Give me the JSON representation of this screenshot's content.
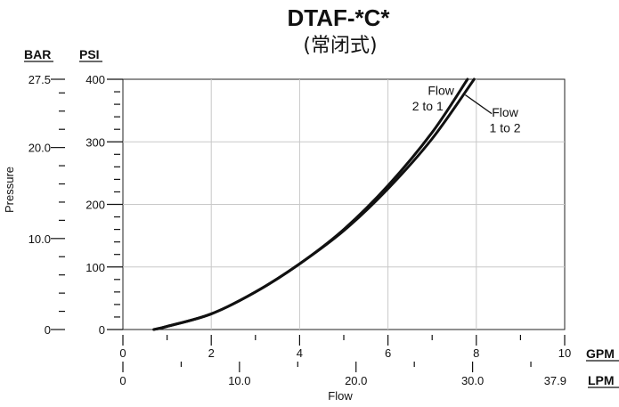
{
  "chart_data": {
    "type": "line",
    "title": "DTAF-*C*",
    "subtitle": "(常闭式)",
    "xlabel": "Flow",
    "ylabel": "Pressure",
    "grid": true,
    "x_axis_gpm": {
      "unit": "GPM",
      "range": [
        0,
        10
      ],
      "ticks": [
        "0",
        "2",
        "4",
        "6",
        "8",
        "10"
      ],
      "tick_values": [
        0,
        2,
        4,
        6,
        8,
        10
      ]
    },
    "x_axis_lpm": {
      "unit": "LPM",
      "ticks": [
        "0",
        "10.0",
        "20.0",
        "30.0",
        "37.9"
      ],
      "tick_values": [
        0,
        10,
        20,
        30,
        37.9
      ]
    },
    "y_axis_psi": {
      "unit": "PSI",
      "range": [
        0,
        400
      ],
      "ticks": [
        "0",
        "100",
        "200",
        "300",
        "400"
      ],
      "tick_values": [
        0,
        100,
        200,
        300,
        400
      ]
    },
    "y_axis_bar": {
      "unit": "BAR",
      "ticks": [
        "0",
        "10.0",
        "20.0",
        "27.5"
      ],
      "tick_values": [
        0,
        10,
        20,
        27.5
      ]
    },
    "series": [
      {
        "name": "Flow 2 to 1",
        "x": [
          0.7,
          1,
          2,
          3,
          4,
          5,
          6,
          7,
          7.8
        ],
        "y": [
          0,
          5,
          25,
          60,
          105,
          160,
          230,
          315,
          400
        ]
      },
      {
        "name": "Flow 1 to 2",
        "x": [
          0.7,
          1,
          2,
          3,
          4,
          5,
          6,
          7,
          7.95
        ],
        "y": [
          0,
          5,
          25,
          60,
          105,
          158,
          225,
          305,
          400
        ]
      }
    ],
    "annotations": [
      {
        "lines": [
          "Flow",
          "2 to 1"
        ],
        "series": "Flow 2 to 1"
      },
      {
        "lines": [
          "Flow",
          "1 to 2"
        ],
        "series": "Flow 1 to 2"
      }
    ]
  }
}
